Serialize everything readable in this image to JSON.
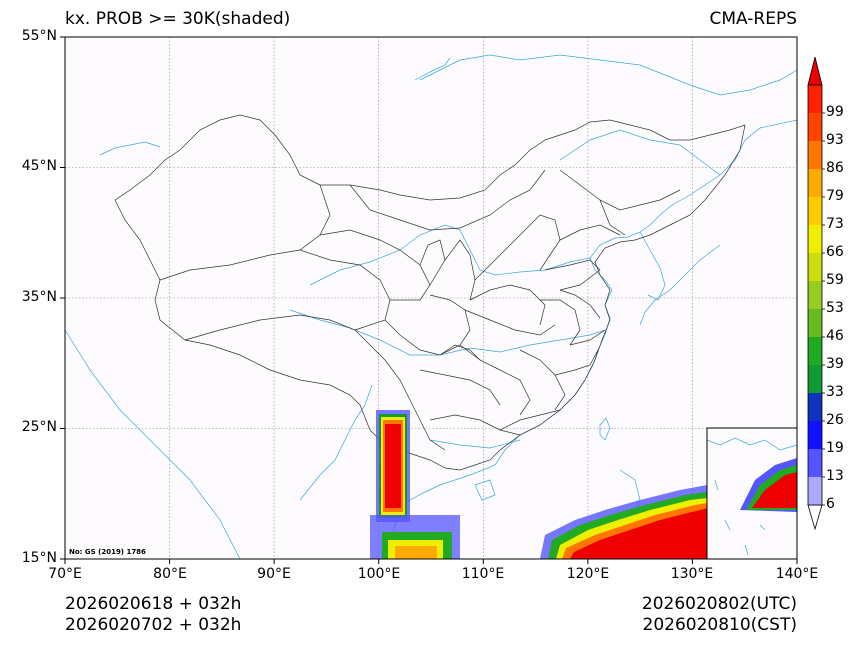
{
  "title_left": "kx. PROB >= 30K(shaded)",
  "title_right": "CMA-REPS",
  "lat_labels": [
    "55°N",
    "45°N",
    "35°N",
    "25°N",
    "15°N"
  ],
  "lon_labels": [
    "70°E",
    "80°E",
    "90°E",
    "100°E",
    "110°E",
    "120°E",
    "130°E",
    "140°E"
  ],
  "map_note": "No: GS (2019) 1786",
  "init_utc": "2026020618  +  032h",
  "init_cst": "2026020702  +  032h",
  "valid_utc": "2026020802(UTC)",
  "valid_cst": "2026020810(CST)",
  "colorbar": {
    "labels": [
      "6",
      "13",
      "19",
      "26",
      "33",
      "39",
      "46",
      "53",
      "59",
      "66",
      "73",
      "79",
      "86",
      "93",
      "99"
    ],
    "colors": [
      "#aaaaff",
      "#5555ff",
      "#1111ff",
      "#1133bb",
      "#119933",
      "#22aa22",
      "#66bb22",
      "#99cc22",
      "#ccdd11",
      "#eeee00",
      "#ffcc00",
      "#ffaa00",
      "#ff7700",
      "#ff4400",
      "#ff2200",
      "#ee0000"
    ]
  },
  "colors": {
    "border": "#333333",
    "river": "#33aadd",
    "grid": "#888888",
    "background": "#fdfbfd"
  }
}
